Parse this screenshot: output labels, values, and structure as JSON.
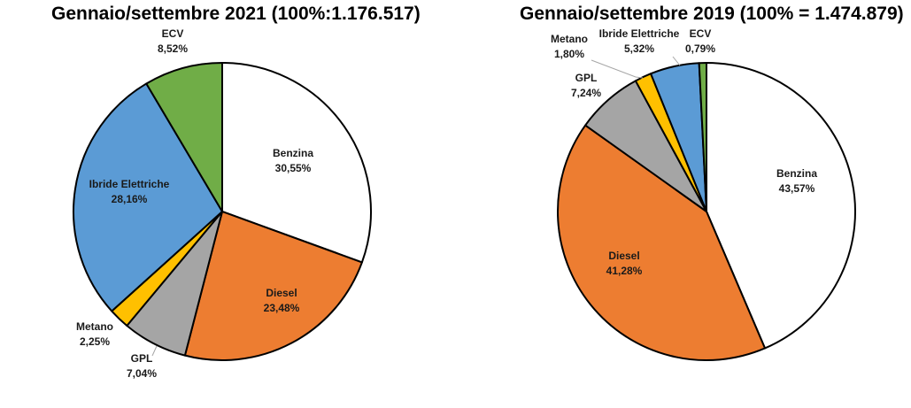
{
  "chart_data": [
    {
      "type": "pie",
      "title": "Gennaio/settembre 2021 (100%:1.176.517)",
      "slices": [
        {
          "label": "Benzina",
          "value": 30.55,
          "value_label": "30,55%",
          "color": "#ffffff"
        },
        {
          "label": "Diesel",
          "value": 23.48,
          "value_label": "23,48%",
          "color": "#ed7d31"
        },
        {
          "label": "GPL",
          "value": 7.04,
          "value_label": "7,04%",
          "color": "#a5a5a5"
        },
        {
          "label": "Metano",
          "value": 2.25,
          "value_label": "2,25%",
          "color": "#ffc000"
        },
        {
          "label": "Ibride Elettriche",
          "value": 28.16,
          "value_label": "28,16%",
          "color": "#5b9bd5"
        },
        {
          "label": "ECV",
          "value": 8.52,
          "value_label": "8,52%",
          "color": "#70ad47"
        }
      ]
    },
    {
      "type": "pie",
      "title": "Gennaio/settembre 2019 (100% = 1.474.879)",
      "slices": [
        {
          "label": "Benzina",
          "value": 43.57,
          "value_label": "43,57%",
          "color": "#ffffff"
        },
        {
          "label": "Diesel",
          "value": 41.28,
          "value_label": "41,28%",
          "color": "#ed7d31"
        },
        {
          "label": "GPL",
          "value": 7.24,
          "value_label": "7,24%",
          "color": "#a5a5a5"
        },
        {
          "label": "Metano",
          "value": 1.8,
          "value_label": "1,80%",
          "color": "#ffc000"
        },
        {
          "label": "Ibride Elettriche",
          "value": 5.32,
          "value_label": "5,32%",
          "color": "#5b9bd5"
        },
        {
          "label": "ECV",
          "value": 0.79,
          "value_label": "0,79%",
          "color": "#70ad47"
        }
      ]
    }
  ]
}
